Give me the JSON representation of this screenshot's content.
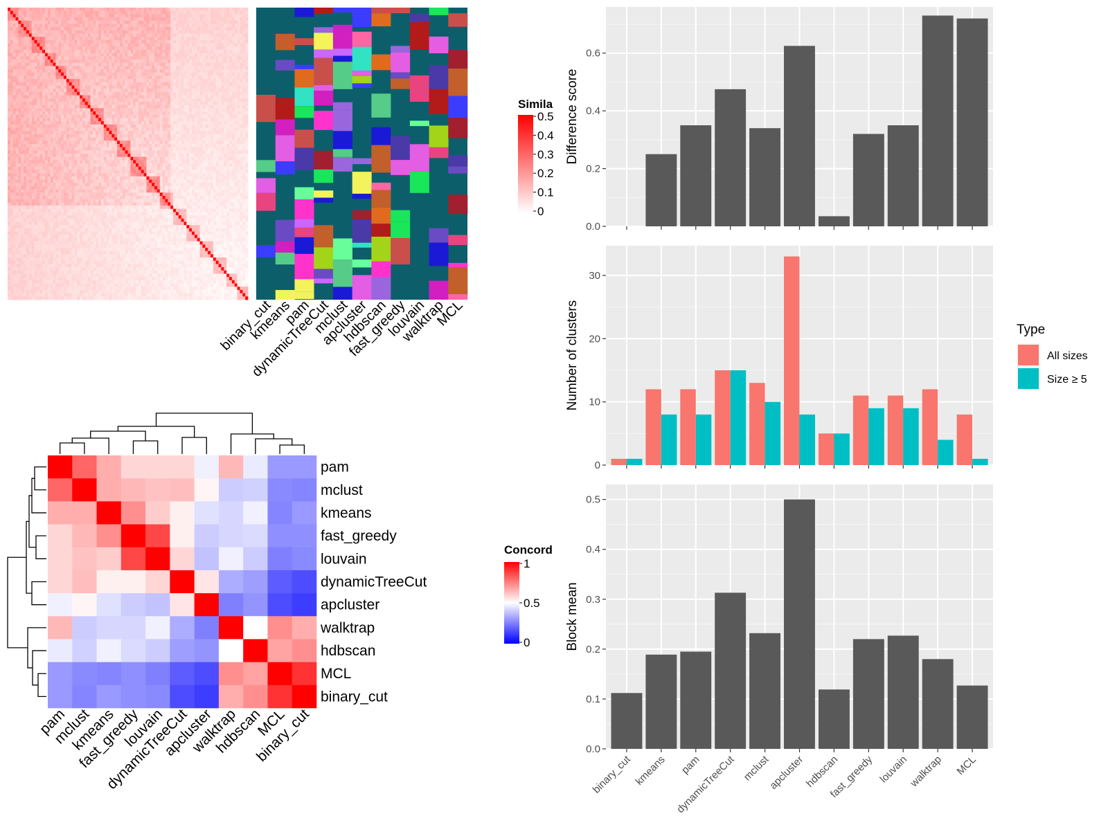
{
  "similarity_legend": {
    "title": "Simila",
    "ticks": [
      "0.5",
      "0.4",
      "0.3",
      "0.2",
      "0.1",
      "0"
    ]
  },
  "methods_top": [
    "binary_cut",
    "kmeans",
    "pam",
    "dynamicTreeCut",
    "mclust",
    "apcluster",
    "hdbscan",
    "fast_greedy",
    "louvain",
    "walktrap",
    "MCL"
  ],
  "concordance_legend": {
    "title": "Concord",
    "ticks": [
      "1",
      "0.5",
      "0"
    ]
  },
  "concordance_order": [
    "pam",
    "mclust",
    "kmeans",
    "fast_greedy",
    "louvain",
    "dynamicTreeCut",
    "apcluster",
    "walktrap",
    "hdbscan",
    "MCL",
    "binary_cut"
  ],
  "concordance_matrix": [
    [
      1.0,
      0.8,
      0.66,
      0.58,
      0.58,
      0.58,
      0.47,
      0.64,
      0.46,
      0.3,
      0.3
    ],
    [
      0.8,
      1.0,
      0.66,
      0.64,
      0.62,
      0.63,
      0.52,
      0.4,
      0.41,
      0.27,
      0.26
    ],
    [
      0.66,
      0.66,
      1.0,
      0.72,
      0.6,
      0.53,
      0.44,
      0.42,
      0.47,
      0.26,
      0.3
    ],
    [
      0.58,
      0.64,
      0.72,
      1.0,
      0.86,
      0.53,
      0.4,
      0.42,
      0.43,
      0.28,
      0.28
    ],
    [
      0.58,
      0.62,
      0.6,
      0.86,
      1.0,
      0.58,
      0.38,
      0.47,
      0.4,
      0.25,
      0.27
    ],
    [
      0.58,
      0.63,
      0.53,
      0.53,
      0.58,
      1.0,
      0.55,
      0.34,
      0.31,
      0.18,
      0.15
    ],
    [
      0.47,
      0.52,
      0.44,
      0.4,
      0.38,
      0.55,
      1.0,
      0.25,
      0.29,
      0.15,
      0.12
    ],
    [
      0.64,
      0.4,
      0.42,
      0.42,
      0.47,
      0.34,
      0.25,
      1.0,
      0.5,
      0.72,
      0.66
    ],
    [
      0.46,
      0.41,
      0.47,
      0.43,
      0.4,
      0.31,
      0.29,
      0.5,
      1.0,
      0.68,
      0.72
    ],
    [
      0.3,
      0.27,
      0.26,
      0.28,
      0.25,
      0.18,
      0.15,
      0.72,
      0.68,
      1.0,
      0.9
    ],
    [
      0.3,
      0.26,
      0.3,
      0.28,
      0.27,
      0.15,
      0.12,
      0.66,
      0.72,
      0.9,
      1.0
    ]
  ],
  "chart_data": [
    {
      "type": "bar",
      "categories": [
        "binary_cut",
        "kmeans",
        "pam",
        "dynamicTreeCut",
        "mclust",
        "apcluster",
        "hdbscan",
        "fast_greedy",
        "louvain",
        "walktrap",
        "MCL"
      ],
      "values": [
        0.0,
        0.25,
        0.35,
        0.475,
        0.34,
        0.625,
        0.035,
        0.32,
        0.35,
        0.73,
        0.72
      ],
      "ylabel": "Difference score",
      "ylim": [
        0,
        0.76
      ],
      "yticks": [
        "0.0",
        "0.2",
        "0.4",
        "0.6"
      ],
      "color": "#595959",
      "grid": true
    },
    {
      "type": "bar",
      "categories": [
        "binary_cut",
        "kmeans",
        "pam",
        "dynamicTreeCut",
        "mclust",
        "apcluster",
        "hdbscan",
        "fast_greedy",
        "louvain",
        "walktrap",
        "MCL"
      ],
      "series": [
        {
          "name": "All sizes",
          "values": [
            1,
            12,
            12,
            15,
            13,
            33,
            5,
            11,
            11,
            12,
            8
          ],
          "color": "#F8766D"
        },
        {
          "name": "Size ≥ 5",
          "values": [
            1,
            8,
            8,
            15,
            10,
            8,
            5,
            9,
            9,
            4,
            1
          ],
          "color": "#00BFC4"
        }
      ],
      "ylabel": "Number of clusters",
      "ylim": [
        0,
        34.7
      ],
      "yticks": [
        "0",
        "10",
        "20",
        "30"
      ],
      "legend_title": "Type",
      "legend_position": "right",
      "grid": true
    },
    {
      "type": "bar",
      "categories": [
        "binary_cut",
        "kmeans",
        "pam",
        "dynamicTreeCut",
        "mclust",
        "apcluster",
        "hdbscan",
        "fast_greedy",
        "louvain",
        "walktrap",
        "MCL"
      ],
      "values": [
        0.112,
        0.189,
        0.195,
        0.313,
        0.232,
        0.5,
        0.119,
        0.22,
        0.227,
        0.18,
        0.127
      ],
      "ylabel": "Block mean",
      "ylim": [
        0,
        0.53
      ],
      "yticks": [
        "0.0",
        "0.1",
        "0.2",
        "0.3",
        "0.4",
        "0.5"
      ],
      "color": "#595959",
      "grid": true
    }
  ]
}
